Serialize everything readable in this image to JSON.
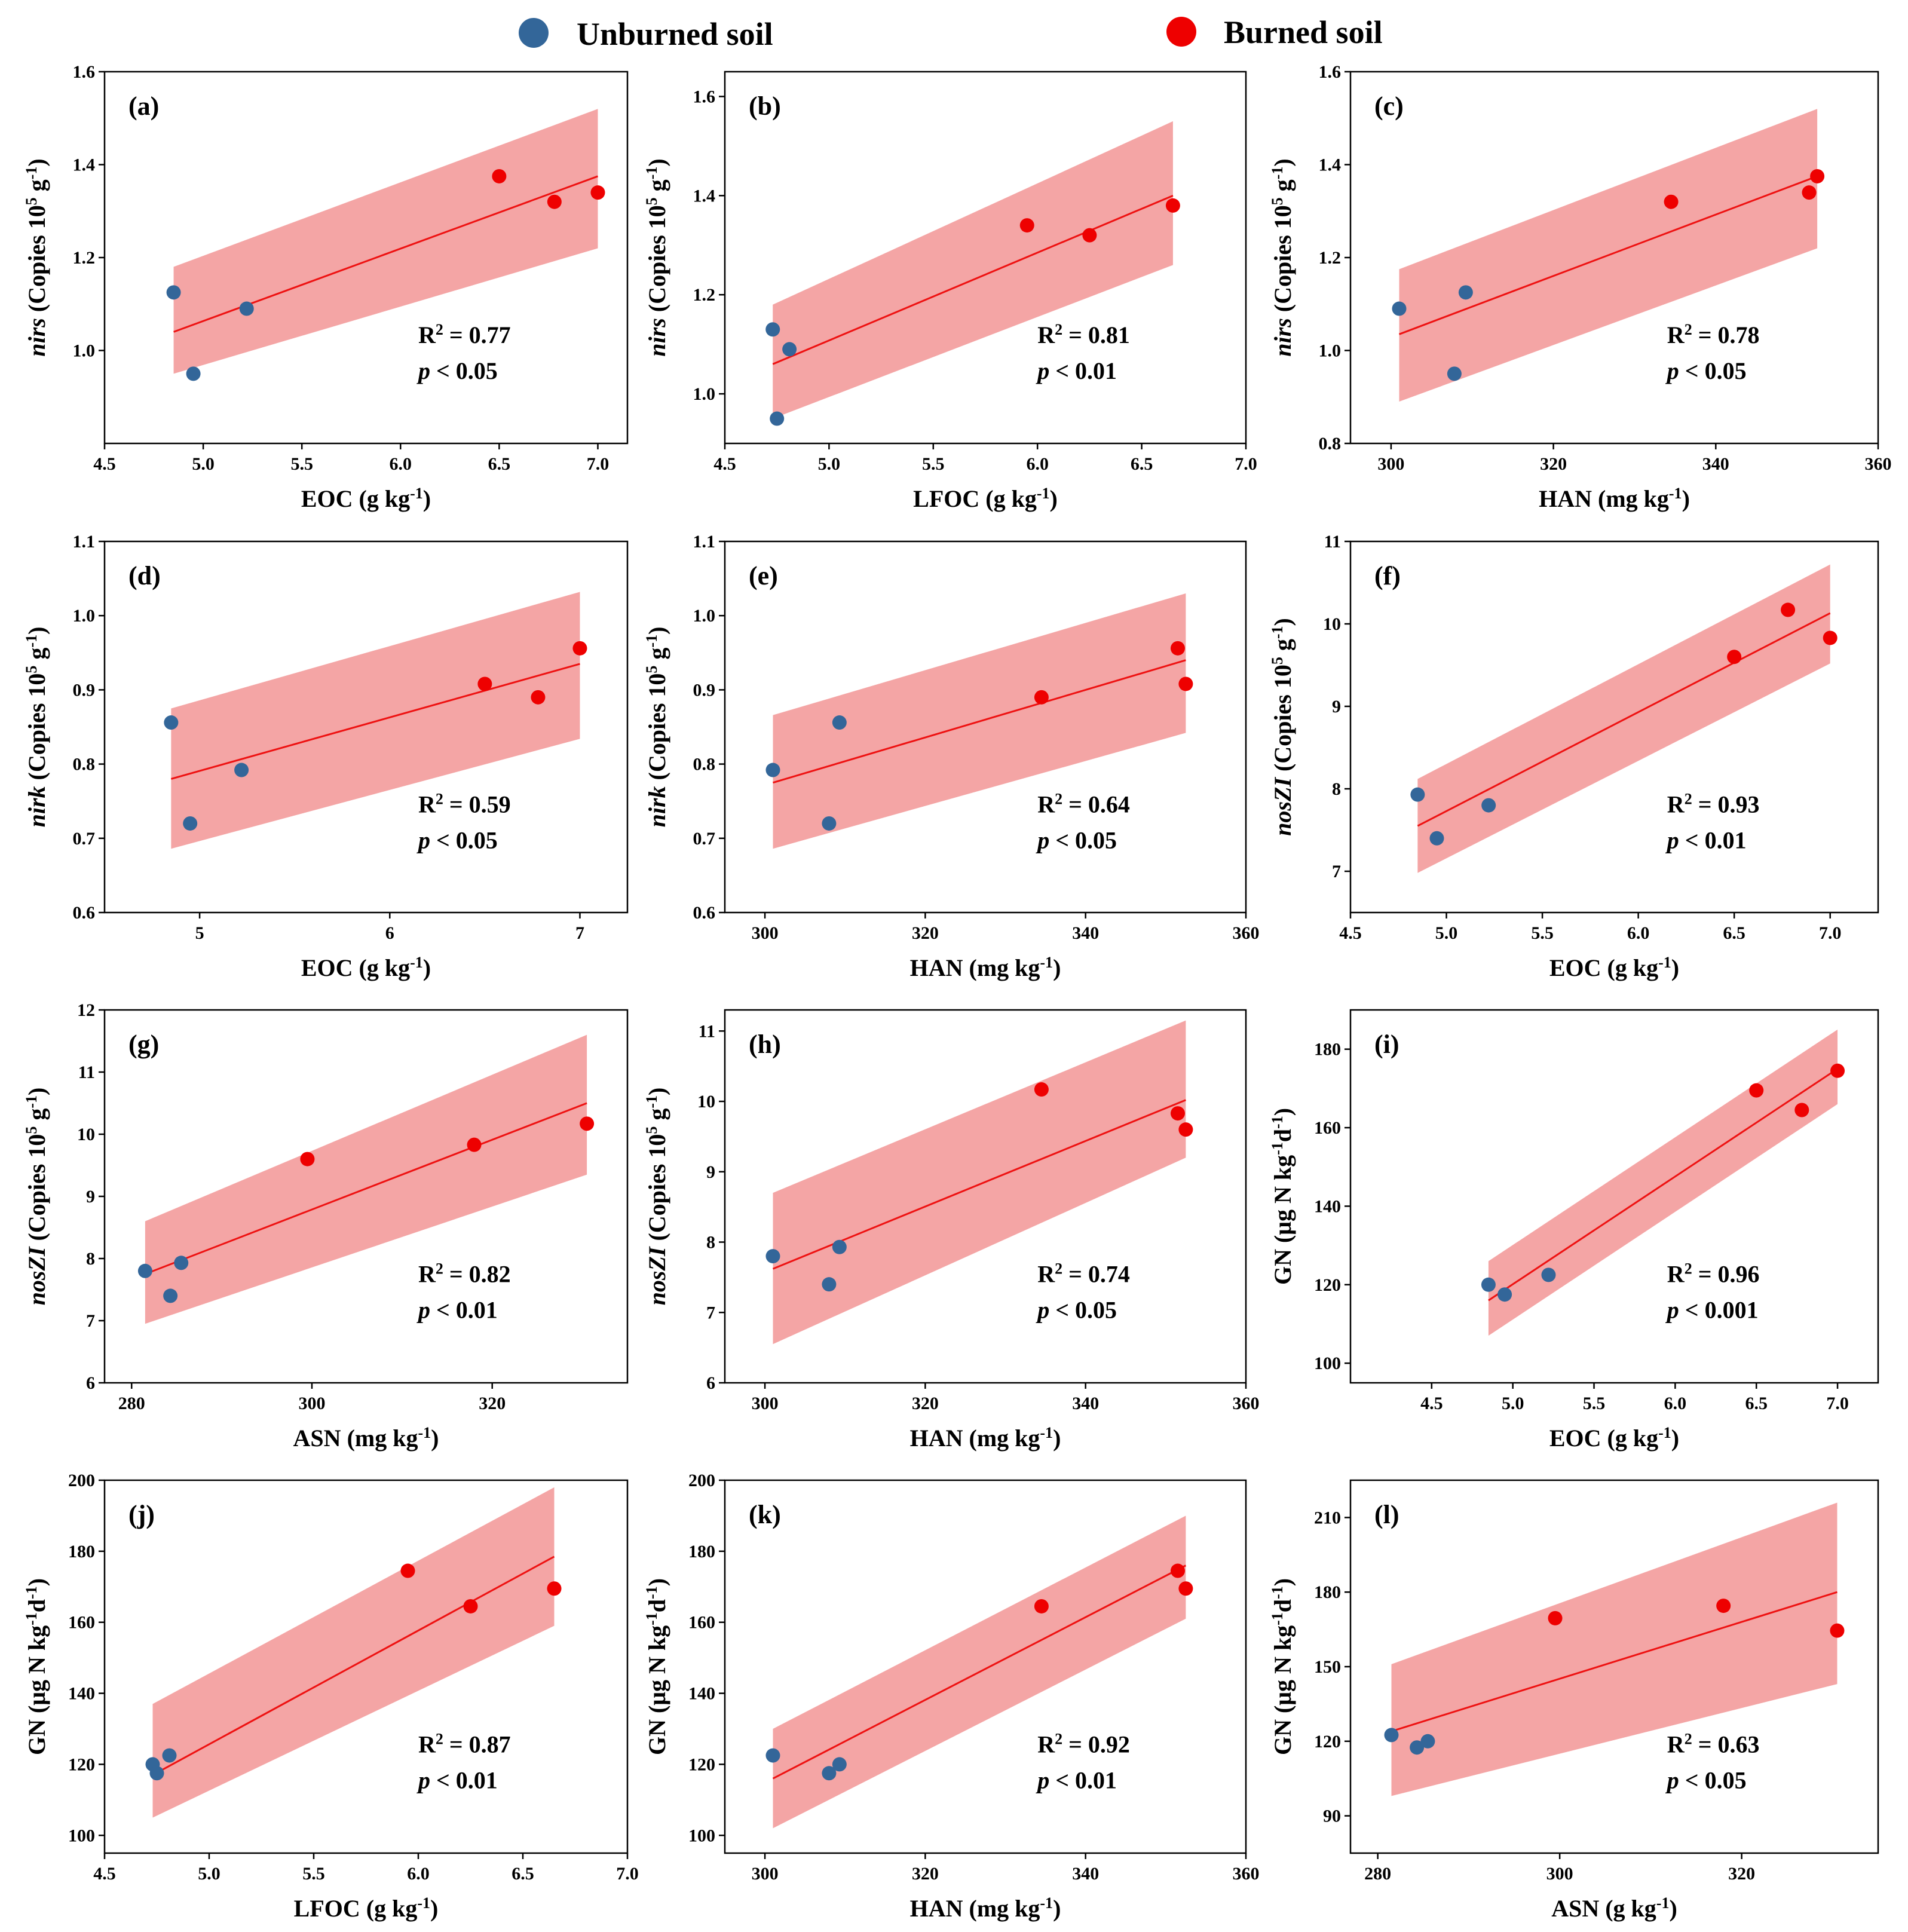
{
  "colors": {
    "unburned": "#336699",
    "burned": "#ee0000",
    "fit_line": "#ee1111",
    "band": "#f4a5a5"
  },
  "legend": [
    {
      "key": "unburned",
      "label": "Unburned soil"
    },
    {
      "key": "burned",
      "label": "Burned soil"
    }
  ],
  "chart_data": [
    {
      "panel": "(a)",
      "type": "scatter",
      "xlabel": {
        "main": "EOC (g kg",
        "sup": "-1",
        "post": ")"
      },
      "ylabel": [
        {
          "t": "nirs",
          "i": true
        },
        {
          "t": " (Copies 10"
        },
        {
          "t": "5",
          "sup": true
        },
        {
          "t": " g"
        },
        {
          "t": "-1",
          "sup": true
        },
        {
          "t": ")"
        }
      ],
      "xlim": [
        4.5,
        7.15
      ],
      "ylim": [
        0.8,
        1.6
      ],
      "xticks": [
        "4.5",
        "5.0",
        "5.5",
        "6.0",
        "6.5",
        "7.0"
      ],
      "yticks": [
        "1.0",
        "1.2",
        "1.4",
        "1.6"
      ],
      "r2": "0.77",
      "p": "< 0.05",
      "unburned": [
        [
          4.85,
          1.125
        ],
        [
          4.95,
          0.95
        ],
        [
          5.22,
          1.09
        ]
      ],
      "burned": [
        [
          6.5,
          1.375
        ],
        [
          6.78,
          1.32
        ],
        [
          7.0,
          1.34
        ]
      ],
      "fit": {
        "x0": 4.85,
        "y0": 1.04,
        "x1": 7.0,
        "y1": 1.375
      },
      "band": {
        "lo0": 0.95,
        "hi0": 1.18,
        "lo1": 1.22,
        "hi1": 1.52
      }
    },
    {
      "panel": "(b)",
      "type": "scatter",
      "xlabel": {
        "main": "LFOC (g kg",
        "sup": "-1",
        "post": ")"
      },
      "ylabel": [
        {
          "t": "nirs",
          "i": true
        },
        {
          "t": " (Copies 10"
        },
        {
          "t": "5",
          "sup": true
        },
        {
          "t": " g"
        },
        {
          "t": "-1",
          "sup": true
        },
        {
          "t": ")"
        }
      ],
      "xlim": [
        4.5,
        7.0
      ],
      "ylim": [
        0.9,
        1.65
      ],
      "xticks": [
        "4.5",
        "5.0",
        "5.5",
        "6.0",
        "6.5",
        "7.0"
      ],
      "yticks": [
        "1.0",
        "1.2",
        "1.4",
        "1.6"
      ],
      "r2": "0.81",
      "p": "< 0.01",
      "unburned": [
        [
          4.73,
          1.13
        ],
        [
          4.75,
          0.95
        ],
        [
          4.81,
          1.09
        ]
      ],
      "burned": [
        [
          5.95,
          1.34
        ],
        [
          6.25,
          1.32
        ],
        [
          6.65,
          1.38
        ]
      ],
      "fit": {
        "x0": 4.73,
        "y0": 1.06,
        "x1": 6.65,
        "y1": 1.4
      },
      "band": {
        "lo0": 0.95,
        "hi0": 1.18,
        "lo1": 1.26,
        "hi1": 1.55
      }
    },
    {
      "panel": "(c)",
      "type": "scatter",
      "xlabel": {
        "main": "HAN (mg kg",
        "sup": "-1",
        "post": ")"
      },
      "ylabel": [
        {
          "t": "nirs",
          "i": true
        },
        {
          "t": " (Copies 10"
        },
        {
          "t": "5",
          "sup": true
        },
        {
          "t": " g"
        },
        {
          "t": "-1",
          "sup": true
        },
        {
          "t": ")"
        }
      ],
      "xlim": [
        295,
        360
      ],
      "ylim": [
        0.8,
        1.6
      ],
      "xticks": [
        "300",
        "320",
        "340",
        "360"
      ],
      "yticks": [
        "0.8",
        "1.0",
        "1.2",
        "1.4",
        "1.6"
      ],
      "r2": "0.78",
      "p": "< 0.05",
      "unburned": [
        [
          301,
          1.09
        ],
        [
          307.8,
          0.95
        ],
        [
          309.2,
          1.125
        ]
      ],
      "burned": [
        [
          334.5,
          1.32
        ],
        [
          351.5,
          1.34
        ],
        [
          352.5,
          1.375
        ]
      ],
      "fit": {
        "x0": 301,
        "y0": 1.035,
        "x1": 352.5,
        "y1": 1.375
      },
      "band": {
        "lo0": 0.89,
        "hi0": 1.175,
        "lo1": 1.22,
        "hi1": 1.52
      }
    },
    {
      "panel": "(d)",
      "type": "scatter",
      "xlabel": {
        "main": "EOC (g kg",
        "sup": "-1",
        "post": ")"
      },
      "ylabel": [
        {
          "t": "nirk",
          "i": true
        },
        {
          "t": " (Copies 10"
        },
        {
          "t": "5",
          "sup": true
        },
        {
          "t": " g"
        },
        {
          "t": "-1",
          "sup": true
        },
        {
          "t": ")"
        }
      ],
      "xlim": [
        4.5,
        7.25
      ],
      "ylim": [
        0.6,
        1.1
      ],
      "xticks": [
        "5",
        "6",
        "7"
      ],
      "yticks": [
        "0.6",
        "0.7",
        "0.8",
        "0.9",
        "1.0",
        "1.1"
      ],
      "r2": "0.59",
      "p": "< 0.05",
      "unburned": [
        [
          4.85,
          0.856
        ],
        [
          4.95,
          0.72
        ],
        [
          5.22,
          0.792
        ]
      ],
      "burned": [
        [
          6.5,
          0.908
        ],
        [
          6.78,
          0.89
        ],
        [
          7.0,
          0.956
        ]
      ],
      "fit": {
        "x0": 4.85,
        "y0": 0.78,
        "x1": 7.0,
        "y1": 0.935
      },
      "band": {
        "lo0": 0.686,
        "hi0": 0.875,
        "lo1": 0.834,
        "hi1": 1.032
      }
    },
    {
      "panel": "(e)",
      "type": "scatter",
      "xlabel": {
        "main": "HAN (mg kg",
        "sup": "-1",
        "post": ")"
      },
      "ylabel": [
        {
          "t": "nirk",
          "i": true
        },
        {
          "t": " (Copies 10"
        },
        {
          "t": "5",
          "sup": true
        },
        {
          "t": " g"
        },
        {
          "t": "-1",
          "sup": true
        },
        {
          "t": ")"
        }
      ],
      "xlim": [
        295,
        360
      ],
      "ylim": [
        0.6,
        1.1
      ],
      "xticks": [
        "300",
        "320",
        "340",
        "360"
      ],
      "yticks": [
        "0.6",
        "0.7",
        "0.8",
        "0.9",
        "1.0",
        "1.1"
      ],
      "r2": "0.64",
      "p": "< 0.05",
      "unburned": [
        [
          301,
          0.792
        ],
        [
          308,
          0.72
        ],
        [
          309.3,
          0.856
        ]
      ],
      "burned": [
        [
          334.5,
          0.89
        ],
        [
          351.5,
          0.956
        ],
        [
          352.5,
          0.908
        ]
      ],
      "fit": {
        "x0": 301,
        "y0": 0.775,
        "x1": 352.5,
        "y1": 0.94
      },
      "band": {
        "lo0": 0.686,
        "hi0": 0.866,
        "lo1": 0.842,
        "hi1": 1.03
      }
    },
    {
      "panel": "(f)",
      "type": "scatter",
      "xlabel": {
        "main": "EOC (g kg",
        "sup": "-1",
        "post": ")"
      },
      "ylabel": [
        {
          "t": "nosZI",
          "i": true
        },
        {
          "t": " (Copies 10"
        },
        {
          "t": "5",
          "sup": true
        },
        {
          "t": " g"
        },
        {
          "t": "-1",
          "sup": true
        },
        {
          "t": ")"
        }
      ],
      "xlim": [
        4.5,
        7.25
      ],
      "ylim": [
        6.5,
        11
      ],
      "xticks": [
        "4.5",
        "5.0",
        "5.5",
        "6.0",
        "6.5",
        "7.0"
      ],
      "yticks": [
        "7",
        "8",
        "9",
        "10",
        "11"
      ],
      "r2": "0.93",
      "p": "< 0.01",
      "unburned": [
        [
          4.85,
          7.93
        ],
        [
          4.95,
          7.4
        ],
        [
          5.22,
          7.8
        ]
      ],
      "burned": [
        [
          6.5,
          9.6
        ],
        [
          6.78,
          10.17
        ],
        [
          7.0,
          9.83
        ]
      ],
      "fit": {
        "x0": 4.85,
        "y0": 7.55,
        "x1": 7.0,
        "y1": 10.13
      },
      "band": {
        "lo0": 6.98,
        "hi0": 8.12,
        "lo1": 9.52,
        "hi1": 10.72
      }
    },
    {
      "panel": "(g)",
      "type": "scatter",
      "xlabel": {
        "main": "ASN (mg kg",
        "sup": "-1",
        "post": ")"
      },
      "ylabel": [
        {
          "t": "nosZI",
          "i": true
        },
        {
          "t": " (Copies 10"
        },
        {
          "t": "5",
          "sup": true
        },
        {
          "t": " g"
        },
        {
          "t": "-1",
          "sup": true
        },
        {
          "t": ")"
        }
      ],
      "xlim": [
        277,
        335
      ],
      "ylim": [
        6,
        12
      ],
      "xticks": [
        "280",
        "300",
        "320"
      ],
      "yticks": [
        "6",
        "7",
        "8",
        "9",
        "10",
        "11",
        "12"
      ],
      "r2": "0.82",
      "p": "< 0.01",
      "unburned": [
        [
          281.5,
          7.8
        ],
        [
          284.3,
          7.4
        ],
        [
          285.5,
          7.93
        ]
      ],
      "burned": [
        [
          299.5,
          9.6
        ],
        [
          318,
          9.83
        ],
        [
          330.5,
          10.17
        ]
      ],
      "fit": {
        "x0": 281.5,
        "y0": 7.75,
        "x1": 330.5,
        "y1": 10.5
      },
      "band": {
        "lo0": 6.95,
        "hi0": 8.6,
        "lo1": 9.35,
        "hi1": 11.6
      }
    },
    {
      "panel": "(h)",
      "type": "scatter",
      "xlabel": {
        "main": "HAN (mg kg",
        "sup": "-1",
        "post": ")"
      },
      "ylabel": [
        {
          "t": "nosZI",
          "i": true
        },
        {
          "t": " (Copies 10"
        },
        {
          "t": "5",
          "sup": true
        },
        {
          "t": " g"
        },
        {
          "t": "-1",
          "sup": true
        },
        {
          "t": ")"
        }
      ],
      "xlim": [
        295,
        360
      ],
      "ylim": [
        6,
        11.3
      ],
      "xticks": [
        "300",
        "320",
        "340",
        "360"
      ],
      "yticks": [
        "6",
        "7",
        "8",
        "9",
        "10",
        "11"
      ],
      "r2": "0.74",
      "p": "< 0.05",
      "unburned": [
        [
          301,
          7.8
        ],
        [
          308,
          7.4
        ],
        [
          309.3,
          7.93
        ]
      ],
      "burned": [
        [
          334.5,
          10.17
        ],
        [
          351.5,
          9.83
        ],
        [
          352.5,
          9.6
        ]
      ],
      "fit": {
        "x0": 301,
        "y0": 7.62,
        "x1": 352.5,
        "y1": 10.02
      },
      "band": {
        "lo0": 6.55,
        "hi0": 8.7,
        "lo1": 9.2,
        "hi1": 11.15
      }
    },
    {
      "panel": "(i)",
      "type": "scatter",
      "xlabel": {
        "main": "EOC (g kg",
        "sup": "-1",
        "post": ")"
      },
      "ylabel": [
        {
          "t": "GN (μg N kg"
        },
        {
          "t": "-1",
          "sup": true
        },
        {
          "t": "d"
        },
        {
          "t": "-1",
          "sup": true
        },
        {
          "t": ")"
        }
      ],
      "xlim": [
        4.0,
        7.25
      ],
      "ylim": [
        95,
        190
      ],
      "xticks": [
        "4.5",
        "5.0",
        "5.5",
        "6.0",
        "6.5",
        "7.0"
      ],
      "yticks": [
        "100",
        "120",
        "140",
        "160",
        "180"
      ],
      "r2": "0.96",
      "p": "< 0.001",
      "unburned": [
        [
          4.85,
          120
        ],
        [
          4.95,
          117.5
        ],
        [
          5.22,
          122.5
        ]
      ],
      "burned": [
        [
          6.5,
          169.5
        ],
        [
          6.78,
          164.5
        ],
        [
          7.0,
          174.5
        ]
      ],
      "fit": {
        "x0": 4.85,
        "y0": 116,
        "x1": 7.0,
        "y1": 175
      },
      "band": {
        "lo0": 107,
        "hi0": 126,
        "lo1": 166,
        "hi1": 185
      }
    },
    {
      "panel": "(j)",
      "type": "scatter",
      "xlabel": {
        "main": "LFOC (g kg",
        "sup": "-1",
        "post": ")"
      },
      "ylabel": [
        {
          "t": "GN (μg N kg"
        },
        {
          "t": "-1",
          "sup": true
        },
        {
          "t": "d"
        },
        {
          "t": "-1",
          "sup": true
        },
        {
          "t": ")"
        }
      ],
      "xlim": [
        4.5,
        7.0
      ],
      "ylim": [
        95,
        200
      ],
      "xticks": [
        "4.5",
        "5.0",
        "5.5",
        "6.0",
        "6.5",
        "7.0"
      ],
      "yticks": [
        "100",
        "120",
        "140",
        "160",
        "180",
        "200"
      ],
      "r2": "0.87",
      "p": "< 0.01",
      "unburned": [
        [
          4.73,
          120
        ],
        [
          4.75,
          117.5
        ],
        [
          4.81,
          122.5
        ]
      ],
      "burned": [
        [
          5.95,
          174.5
        ],
        [
          6.25,
          164.5
        ],
        [
          6.65,
          169.5
        ]
      ],
      "fit": {
        "x0": 4.73,
        "y0": 117,
        "x1": 6.65,
        "y1": 178.5
      },
      "band": {
        "lo0": 105,
        "hi0": 137,
        "lo1": 159,
        "hi1": 198
      }
    },
    {
      "panel": "(k)",
      "type": "scatter",
      "xlabel": {
        "main": "HAN (mg kg",
        "sup": "-1",
        "post": ")"
      },
      "ylabel": [
        {
          "t": "GN (μg N kg"
        },
        {
          "t": "-1",
          "sup": true
        },
        {
          "t": "d"
        },
        {
          "t": "-1",
          "sup": true
        },
        {
          "t": ")"
        }
      ],
      "xlim": [
        295,
        360
      ],
      "ylim": [
        95,
        200
      ],
      "xticks": [
        "300",
        "320",
        "340",
        "360"
      ],
      "yticks": [
        "100",
        "120",
        "140",
        "160",
        "180",
        "200"
      ],
      "r2": "0.92",
      "p": "< 0.01",
      "unburned": [
        [
          301,
          122.5
        ],
        [
          308,
          117.5
        ],
        [
          309.3,
          120
        ]
      ],
      "burned": [
        [
          334.5,
          164.5
        ],
        [
          351.5,
          174.5
        ],
        [
          352.5,
          169.5
        ]
      ],
      "fit": {
        "x0": 301,
        "y0": 116,
        "x1": 352.5,
        "y1": 176
      },
      "band": {
        "lo0": 102,
        "hi0": 130,
        "lo1": 161,
        "hi1": 190
      }
    },
    {
      "panel": "(l)",
      "type": "scatter",
      "xlabel": {
        "main": "ASN (g kg",
        "sup": "-1",
        "post": ")"
      },
      "ylabel": [
        {
          "t": "GN (μg N kg"
        },
        {
          "t": "-1",
          "sup": true
        },
        {
          "t": "d"
        },
        {
          "t": "-1",
          "sup": true
        },
        {
          "t": ")"
        }
      ],
      "xlim": [
        277,
        335
      ],
      "ylim": [
        75,
        225
      ],
      "xticks": [
        "280",
        "300",
        "320"
      ],
      "yticks": [
        "90",
        "120",
        "150",
        "180",
        "210"
      ],
      "r2": "0.63",
      "p": "< 0.05",
      "unburned": [
        [
          281.5,
          122.5
        ],
        [
          284.3,
          117.5
        ],
        [
          285.5,
          120
        ]
      ],
      "burned": [
        [
          299.5,
          169.5
        ],
        [
          318,
          174.5
        ],
        [
          330.5,
          164.5
        ]
      ],
      "fit": {
        "x0": 281.5,
        "y0": 124,
        "x1": 330.5,
        "y1": 180
      },
      "band": {
        "lo0": 98,
        "hi0": 151,
        "lo1": 143,
        "hi1": 216
      }
    }
  ]
}
